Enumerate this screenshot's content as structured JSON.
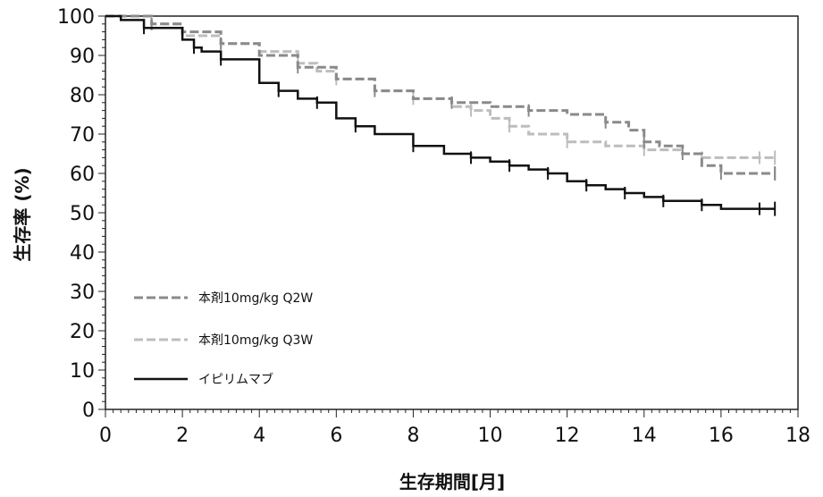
{
  "chart_data": {
    "type": "line",
    "title": "",
    "xlabel": "生存期間[月]",
    "ylabel": "生存率 (%)",
    "xlim": [
      0,
      18
    ],
    "ylim": [
      0,
      100
    ],
    "xticks": [
      "0",
      "2",
      "4",
      "6",
      "8",
      "10",
      "12",
      "14",
      "16",
      "18"
    ],
    "yticks": [
      "0",
      "10",
      "20",
      "30",
      "40",
      "50",
      "60",
      "70",
      "80",
      "90",
      "100"
    ],
    "grid": false,
    "legend_position": "lower-left",
    "series": [
      {
        "name": "本剤10mg/kg Q2W",
        "color": "#8a8a8a",
        "style": "dashed",
        "x": [
          0,
          0.8,
          1.2,
          2.0,
          3.0,
          4.0,
          5.0,
          6.0,
          7.0,
          8.0,
          9.0,
          10.0,
          11.0,
          12.0,
          13.0,
          13.6,
          14.0,
          14.4,
          15.0,
          15.5,
          16.0,
          17.0,
          17.4
        ],
        "y": [
          100,
          100,
          98,
          96,
          93,
          90,
          87,
          84,
          81,
          79,
          78,
          77,
          76,
          75,
          73,
          71,
          68,
          67,
          65,
          62,
          60,
          60,
          60
        ]
      },
      {
        "name": "本剤10mg/kg Q3W",
        "color": "#bdbdbd",
        "style": "dashed",
        "x": [
          0,
          0.8,
          1.2,
          2.0,
          3.0,
          4.0,
          5.0,
          5.5,
          6.0,
          7.0,
          8.0,
          9.0,
          9.5,
          10.0,
          10.5,
          11.0,
          12.0,
          13.0,
          14.0,
          15.0,
          15.5,
          16.0,
          17.0,
          17.4
        ],
        "y": [
          100,
          100,
          98,
          95,
          93,
          91,
          88,
          86,
          84,
          81,
          79,
          77,
          76,
          74,
          72,
          70,
          68,
          67,
          66,
          65,
          64,
          64,
          64,
          64
        ]
      },
      {
        "name": "イピリムマブ",
        "color": "#111111",
        "style": "solid",
        "x": [
          0,
          0.4,
          1.0,
          2.0,
          2.3,
          2.5,
          3.0,
          4.0,
          4.5,
          5.0,
          5.5,
          6.0,
          6.5,
          7.0,
          8.0,
          8.8,
          9.5,
          10.0,
          10.5,
          11.0,
          11.5,
          12.0,
          12.5,
          13.0,
          13.5,
          14.0,
          14.5,
          15.0,
          15.5,
          16.0,
          17.0,
          17.4
        ],
        "y": [
          100,
          99,
          97,
          94,
          92,
          91,
          89,
          83,
          81,
          79,
          78,
          74,
          72,
          70,
          67,
          65,
          64,
          63,
          62,
          61,
          60,
          58,
          57,
          56,
          55,
          54,
          53,
          53,
          52,
          51,
          51,
          51
        ]
      }
    ]
  }
}
